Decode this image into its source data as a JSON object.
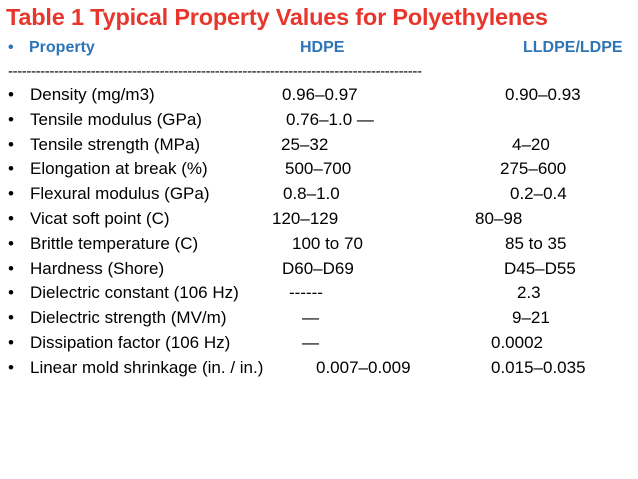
{
  "title": "Table 1 Typical Property Values for Polyethylenes",
  "bullet": "•",
  "header": {
    "property": "Property",
    "hdpe": "HDPE",
    "lldpe": "LLDPE/LDPE"
  },
  "divider": "------------------------------------------------------------------------------------------",
  "rows": [
    {
      "property": "Density (mg/m3)",
      "hdpe": "0.96–0.97",
      "lldpe": "0.90–0.93"
    },
    {
      "property": "Tensile modulus (GPa)",
      "hdpe": "0.76–1.0 —",
      "lldpe": ""
    },
    {
      "property": "Tensile strength (MPa)",
      "hdpe": "25–32",
      "lldpe": "4–20"
    },
    {
      "property": "Elongation at break (%)",
      "hdpe": "500–700",
      "lldpe": "275–600"
    },
    {
      "property": "Flexural modulus (GPa)",
      "hdpe": "0.8–1.0",
      "lldpe": "0.2–0.4"
    },
    {
      "property": "Vicat soft point (C)",
      "hdpe": "120–129",
      "lldpe": "80–98"
    },
    {
      "property": "Brittle temperature (C)",
      "hdpe": "100 to 70",
      "lldpe": "85 to 35"
    },
    {
      "property": "Hardness (Shore)",
      "hdpe": "D60–D69",
      "lldpe": "D45–D55"
    },
    {
      "property": "Dielectric constant (106 Hz)",
      "hdpe": "------",
      "lldpe": "2.3"
    },
    {
      "property": "Dielectric strength (MV/m)",
      "hdpe": "—",
      "lldpe": "9–21"
    },
    {
      "property": "Dissipation factor (106 Hz)",
      "hdpe": "—",
      "lldpe": "0.0002"
    },
    {
      "property": "Linear mold shrinkage (in. / in.)",
      "hdpe": "0.007–0.009",
      "lldpe": "0.015–0.035"
    }
  ]
}
